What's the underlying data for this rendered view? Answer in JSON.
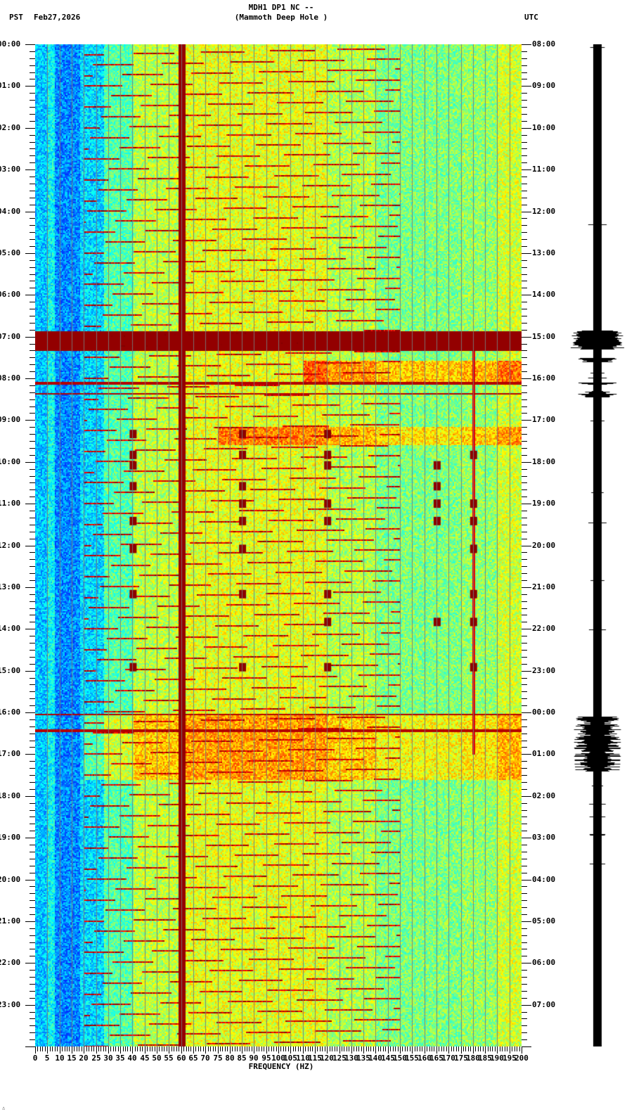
{
  "header": {
    "station_line": "MDH1 DP1 NC --",
    "station_name": "(Mammoth Deep Hole )",
    "left_timezone": "PST",
    "date": "Feb27,2026",
    "right_timezone": "UTC"
  },
  "footer": {
    "corner_mark": "∴"
  },
  "chart_data": {
    "type": "heatmap",
    "title": "MDH1 DP1 NC -- (Mammoth Deep Hole )",
    "subtitle": "PST Feb27,2026",
    "xlabel": "FREQUENCY (HZ)",
    "ylabel_left": "PST",
    "ylabel_right": "UTC",
    "xlim": [
      0,
      200
    ],
    "x_ticks": [
      "0",
      "5",
      "10",
      "15",
      "20",
      "25",
      "30",
      "35",
      "40",
      "45",
      "50",
      "55",
      "60",
      "65",
      "70",
      "75",
      "80",
      "85",
      "90",
      "95",
      "100",
      "105",
      "110",
      "115",
      "120",
      "125",
      "130",
      "135",
      "140",
      "145",
      "150",
      "155",
      "160",
      "165",
      "170",
      "175",
      "180",
      "185",
      "190",
      "195",
      "200"
    ],
    "y_ticks_left_pst": [
      "00:00",
      "01:00",
      "02:00",
      "03:00",
      "04:00",
      "05:00",
      "06:00",
      "07:00",
      "08:00",
      "09:00",
      "10:00",
      "11:00",
      "12:00",
      "13:00",
      "14:00",
      "15:00",
      "16:00",
      "17:00",
      "18:00",
      "19:00",
      "20:00",
      "21:00",
      "22:00",
      "23:00"
    ],
    "y_ticks_right_utc": [
      "08:00",
      "09:00",
      "10:00",
      "11:00",
      "12:00",
      "13:00",
      "14:00",
      "15:00",
      "16:00",
      "17:00",
      "18:00",
      "19:00",
      "20:00",
      "21:00",
      "22:00",
      "23:00",
      "00:00",
      "01:00",
      "02:00",
      "03:00",
      "04:00",
      "05:00",
      "06:00",
      "07:00"
    ],
    "grid_lines_every_hz": 5,
    "colormap": "jet (blue=low, red/darkred=high)",
    "persistent_lines_hz": [
      60,
      180
    ],
    "features": [
      {
        "type": "broadband_saturation",
        "start_pst": "06:52",
        "end_pst": "07:20",
        "note": "dark red band across 0-200 Hz"
      },
      {
        "type": "broadband_noise",
        "start_pst": "08:05",
        "end_pst": "08:30",
        "note": "multiple horizontal lines"
      },
      {
        "type": "broadband_noise",
        "start_pst": "16:00",
        "end_pst": "16:45",
        "note": "horizontal lines, elevated energy to ~17:30"
      },
      {
        "type": "elevated_band",
        "start_pst": "07:35",
        "end_pst": "08:05",
        "freq_range_hz": [
          110,
          200
        ]
      },
      {
        "type": "elevated_band",
        "start_pst": "09:10",
        "end_pst": "09:35",
        "freq_range_hz": [
          75,
          200
        ]
      },
      {
        "type": "recurring_glides",
        "note": "upward-sloping harmonic tonal streaks repeating ~every 15 min, 20-140 Hz"
      },
      {
        "type": "transient_events",
        "times_pst": [
          "09:20",
          "09:50",
          "10:05",
          "10:35",
          "11:00",
          "11:25",
          "12:05",
          "13:10",
          "13:50",
          "14:55"
        ],
        "freq_hz": [
          40,
          85,
          120,
          165,
          180
        ]
      },
      {
        "type": "wandering_tone",
        "start_pst": "08:45",
        "end_pst": "16:00",
        "freq_range_hz": [
          5,
          18
        ]
      }
    ],
    "seismogram": {
      "position": "right",
      "large_amplitude_pst": [
        "06:55-07:15",
        "16:10-17:25"
      ],
      "minor_events_pst": [
        "07:35",
        "08:10",
        "08:25"
      ]
    }
  }
}
